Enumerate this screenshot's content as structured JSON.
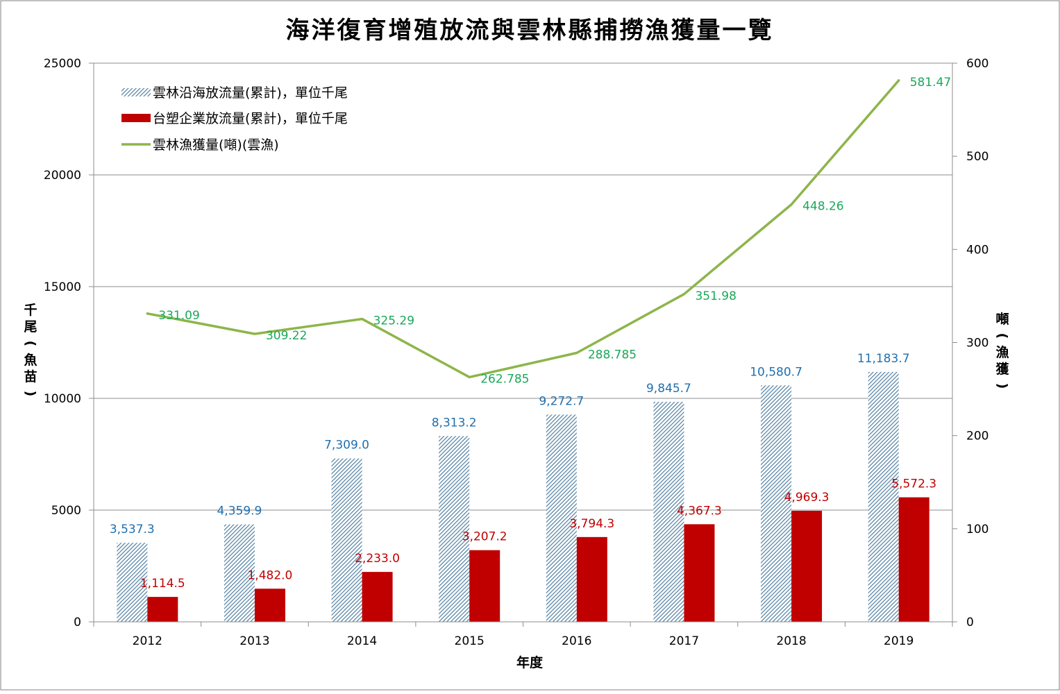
{
  "chart_data": {
    "type": "bar",
    "title": "海洋復育增殖放流與雲林縣捕撈漁獲量一覽",
    "xlabel": "年度",
    "ylabel": "千尾(魚苗)",
    "y2label": "噸(漁獲)",
    "categories": [
      "2012",
      "2013",
      "2014",
      "2015",
      "2016",
      "2017",
      "2018",
      "2019"
    ],
    "ylim": [
      0,
      25000
    ],
    "y2lim": [
      0,
      600
    ],
    "yticks": [
      "0",
      "5000",
      "10000",
      "15000",
      "20000",
      "25000"
    ],
    "y2ticks": [
      "0",
      "100",
      "200",
      "300",
      "400",
      "500",
      "600"
    ],
    "grid": true,
    "legend_position": "top-left",
    "series": [
      {
        "name": "雲林沿海放流量(累計)，單位千尾",
        "type": "bar",
        "axis": "left",
        "color": "#4f7ea0",
        "pattern": "diagonal-hatch",
        "values": [
          3537.3,
          4359.9,
          7309.0,
          8313.2,
          9272.7,
          9845.7,
          10580.7,
          11183.7
        ],
        "labels": [
          "3,537.3",
          "4,359.9",
          "7,309.0",
          "8,313.2",
          "9,272.7",
          "9,845.7",
          "10,580.7",
          "11,183.7"
        ],
        "label_color": "#1f6fae"
      },
      {
        "name": "台塑企業放流量(累計)，單位千尾",
        "type": "bar",
        "axis": "left",
        "color": "#c00000",
        "values": [
          1114.5,
          1482.0,
          2233.0,
          3207.2,
          3794.3,
          4367.3,
          4969.3,
          5572.3
        ],
        "labels": [
          "1,114.5",
          "1,482.0",
          "2,233.0",
          "3,207.2",
          "3,794.3",
          "4,367.3",
          "4,969.3",
          "5,572.3"
        ],
        "label_color": "#c00000"
      },
      {
        "name": "雲林漁獲量(噸)(雲漁)",
        "type": "line",
        "axis": "right",
        "color": "#8db54a",
        "values": [
          331.09,
          309.22,
          325.29,
          262.785,
          288.785,
          351.98,
          448.26,
          581.47
        ],
        "labels": [
          "331.09",
          "309.22",
          "325.29",
          "262.785",
          "288.785",
          "351.98",
          "448.26",
          "581.47"
        ],
        "label_color": "#19a85a"
      }
    ]
  }
}
